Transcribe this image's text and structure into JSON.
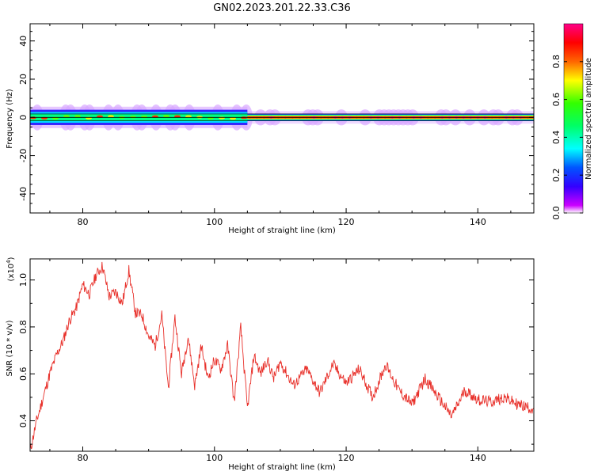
{
  "title": "GN02.2023.201.22.33.C36",
  "colors": {
    "snr_line": "#e8302a",
    "spectrogram_background": "#ffffff",
    "frequency_centerline": "#000000"
  },
  "chart_data": [
    {
      "type": "heatmap",
      "xlabel": "Height of straight line (km)",
      "ylabel": "Frequency (Hz)",
      "xlim": [
        72,
        148.5
      ],
      "ylim": [
        -50,
        49
      ],
      "x_ticks": [
        80,
        100,
        120,
        140
      ],
      "y_ticks": [
        40,
        20,
        0,
        -20,
        -40
      ],
      "colorbar": {
        "label": "Normalized spectral amplitude",
        "range": [
          0,
          1
        ],
        "ticks": [
          "0.0",
          "0.2",
          "0.4",
          "0.6",
          "0.8"
        ],
        "colormap": "rainbow (violet-blue-cyan-green-yellow-orange-red-magenta)"
      },
      "features": {
        "signal_center_frequency": 0,
        "band_halfwidth_before_105km": 4,
        "band_halfwidth_after_105km": 1.5,
        "peak_amplitude": 0.9
      },
      "grid": false
    },
    {
      "type": "line",
      "xlabel": "Height of straight line (km)",
      "ylabel": "SNR (10 * v/v)",
      "y_multiplier_label": "(x10",
      "y_multiplier_exponent": "4",
      "y_multiplier_close": ")",
      "xlim": [
        72,
        148.5
      ],
      "ylim": [
        0.27,
        1.09
      ],
      "x_ticks": [
        80,
        100,
        120,
        140
      ],
      "y_ticks": [
        "0.4",
        "0.6",
        "0.8",
        "1.0"
      ],
      "grid": false,
      "series": [
        {
          "x": [
            72,
            73,
            74,
            75,
            76,
            77,
            78,
            79,
            80,
            81,
            82,
            83,
            84,
            85,
            86,
            87,
            88,
            89,
            90,
            91,
            92,
            93,
            94,
            95,
            96,
            97,
            98,
            99,
            100,
            101,
            102,
            103,
            104,
            105,
            106,
            107,
            108,
            109,
            110,
            112,
            114,
            116,
            118,
            120,
            122,
            124,
            126,
            128,
            130,
            132,
            134,
            136,
            137,
            138,
            140,
            142,
            144,
            146,
            148.5
          ],
          "y": [
            0.27,
            0.4,
            0.5,
            0.6,
            0.68,
            0.74,
            0.83,
            0.88,
            0.98,
            0.94,
            1.02,
            1.06,
            0.93,
            0.95,
            0.9,
            1.04,
            0.86,
            0.85,
            0.76,
            0.72,
            0.85,
            0.54,
            0.84,
            0.6,
            0.76,
            0.55,
            0.72,
            0.58,
            0.66,
            0.62,
            0.72,
            0.48,
            0.8,
            0.45,
            0.68,
            0.6,
            0.66,
            0.58,
            0.65,
            0.55,
            0.62,
            0.52,
            0.64,
            0.56,
            0.62,
            0.5,
            0.64,
            0.53,
            0.47,
            0.58,
            0.5,
            0.42,
            0.47,
            0.53,
            0.49,
            0.48,
            0.5,
            0.47,
            0.45
          ]
        }
      ]
    }
  ]
}
